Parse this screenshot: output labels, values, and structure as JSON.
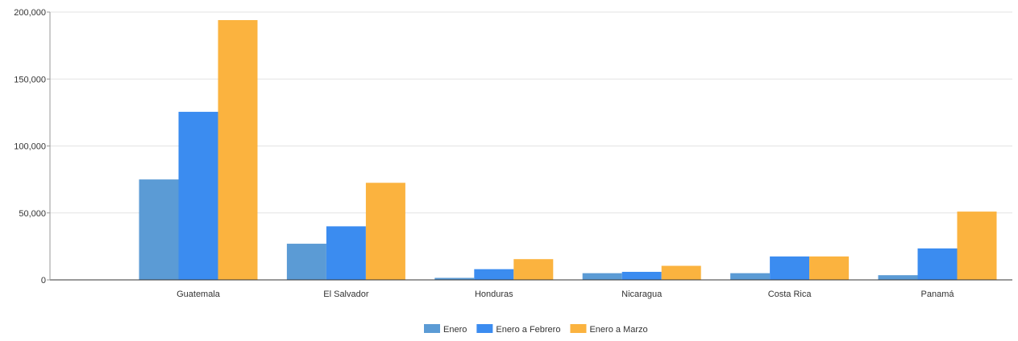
{
  "chart_data": {
    "type": "bar",
    "title": "",
    "xlabel": "",
    "ylabel": "",
    "categories": [
      "Guatemala",
      "El Salvador",
      "Honduras",
      "Nicaragua",
      "Costa Rica",
      "Panamá"
    ],
    "series": [
      {
        "name": "Enero",
        "color": "#5b9bd5",
        "values": [
          75000,
          27000,
          1500,
          5000,
          5000,
          3500
        ]
      },
      {
        "name": "Enero a Febrero",
        "color": "#3b8cf0",
        "values": [
          125500,
          40000,
          8000,
          6000,
          17500,
          23500
        ]
      },
      {
        "name": "Enero a Marzo",
        "color": "#fbb33f",
        "values": [
          194000,
          72500,
          15500,
          10500,
          17500,
          51000
        ]
      }
    ],
    "ylim": [
      0,
      200000
    ],
    "yticks": [
      0,
      50000,
      100000,
      150000,
      200000
    ],
    "ytick_labels": [
      "0",
      "50,000",
      "100,000",
      "150,000",
      "200,000"
    ],
    "grid": true,
    "legend_position": "bottom"
  }
}
